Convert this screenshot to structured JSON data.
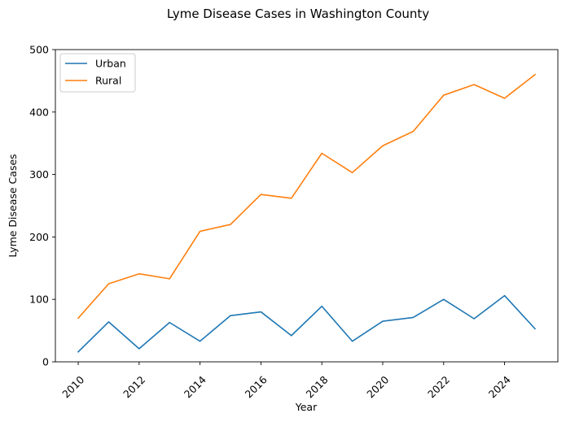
{
  "chart_data": {
    "type": "line",
    "title": "Lyme Disease Cases in Washington County",
    "xlabel": "Year",
    "ylabel": "Lyme Disease Cases",
    "x": [
      2010,
      2011,
      2012,
      2013,
      2014,
      2015,
      2016,
      2017,
      2018,
      2019,
      2020,
      2021,
      2022,
      2023,
      2024,
      2025
    ],
    "xlim": [
      2009.25,
      2025.75
    ],
    "ylim": [
      0,
      500
    ],
    "xticks": [
      2010,
      2012,
      2014,
      2016,
      2018,
      2020,
      2022,
      2024
    ],
    "yticks": [
      0,
      100,
      200,
      300,
      400,
      500
    ],
    "grid": false,
    "legend": "top-left",
    "series": [
      {
        "name": "Urban",
        "color": "#1f77b4",
        "values": [
          16,
          64,
          21,
          63,
          33,
          74,
          80,
          42,
          89,
          33,
          65,
          71,
          100,
          69,
          106,
          53
        ]
      },
      {
        "name": "Rural",
        "color": "#ff7f0e",
        "values": [
          70,
          125,
          141,
          133,
          209,
          220,
          268,
          262,
          334,
          303,
          346,
          369,
          427,
          444,
          422,
          460
        ]
      }
    ]
  }
}
